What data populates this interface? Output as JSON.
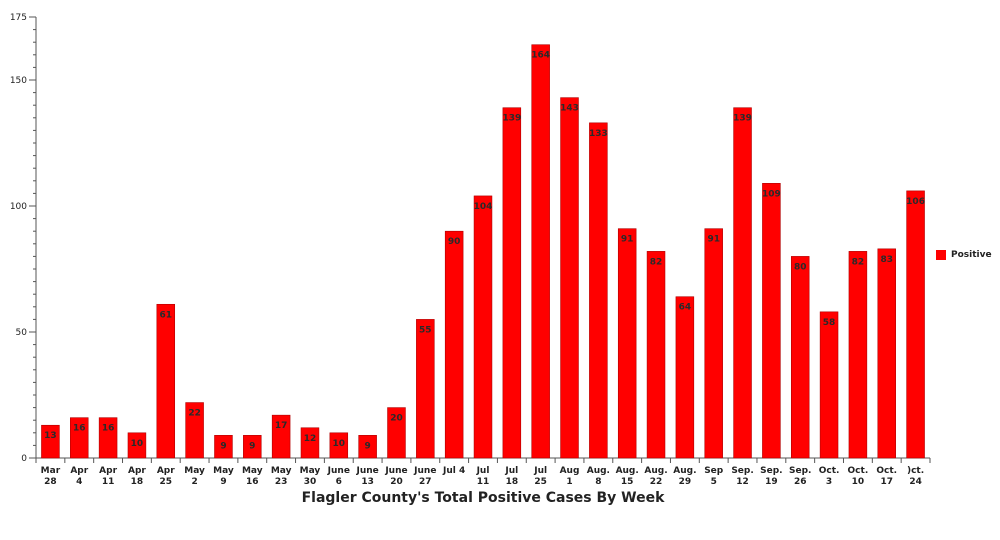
{
  "chart_data": {
    "type": "bar",
    "title": "Flagler County's Total Positive Cases By Week",
    "xlabel": "",
    "ylabel": "",
    "ylim": [
      0,
      175
    ],
    "yticks": [
      0,
      50,
      100,
      150,
      175
    ],
    "legend_position": "right",
    "colors": {
      "bar": "#ff0000",
      "bar_stroke": "#b00000",
      "axis": "#555555",
      "text": "#222222"
    },
    "categories": [
      [
        "Mar",
        "28"
      ],
      [
        "Apr",
        "4"
      ],
      [
        "Apr",
        "11"
      ],
      [
        "Apr",
        "18"
      ],
      [
        "Apr",
        "25"
      ],
      [
        "May",
        "2"
      ],
      [
        "May",
        "9"
      ],
      [
        "May",
        "16"
      ],
      [
        "May",
        "23"
      ],
      [
        "May",
        "30"
      ],
      [
        "June",
        "6"
      ],
      [
        "June",
        "13"
      ],
      [
        "June",
        "20"
      ],
      [
        "June",
        "27"
      ],
      [
        "Jul 4",
        ""
      ],
      [
        "Jul",
        "11"
      ],
      [
        "Jul",
        "18"
      ],
      [
        "Jul",
        "25"
      ],
      [
        "Aug",
        "1"
      ],
      [
        "Aug.",
        "8"
      ],
      [
        "Aug.",
        "15"
      ],
      [
        "Aug.",
        "22"
      ],
      [
        "Aug.",
        "29"
      ],
      [
        "Sep",
        "5"
      ],
      [
        "Sep.",
        "12"
      ],
      [
        "Sep.",
        "19"
      ],
      [
        "Sep.",
        "26"
      ],
      [
        "Oct.",
        "3"
      ],
      [
        "Oct.",
        "10"
      ],
      [
        "Oct.",
        "17"
      ],
      [
        ")ct.",
        "24"
      ]
    ],
    "series": [
      {
        "name": "Positive",
        "values": [
          13,
          16,
          16,
          10,
          61,
          22,
          9,
          9,
          17,
          12,
          10,
          9,
          20,
          55,
          90,
          104,
          139,
          164,
          143,
          133,
          91,
          82,
          64,
          91,
          139,
          109,
          80,
          58,
          82,
          83,
          106
        ]
      }
    ]
  }
}
